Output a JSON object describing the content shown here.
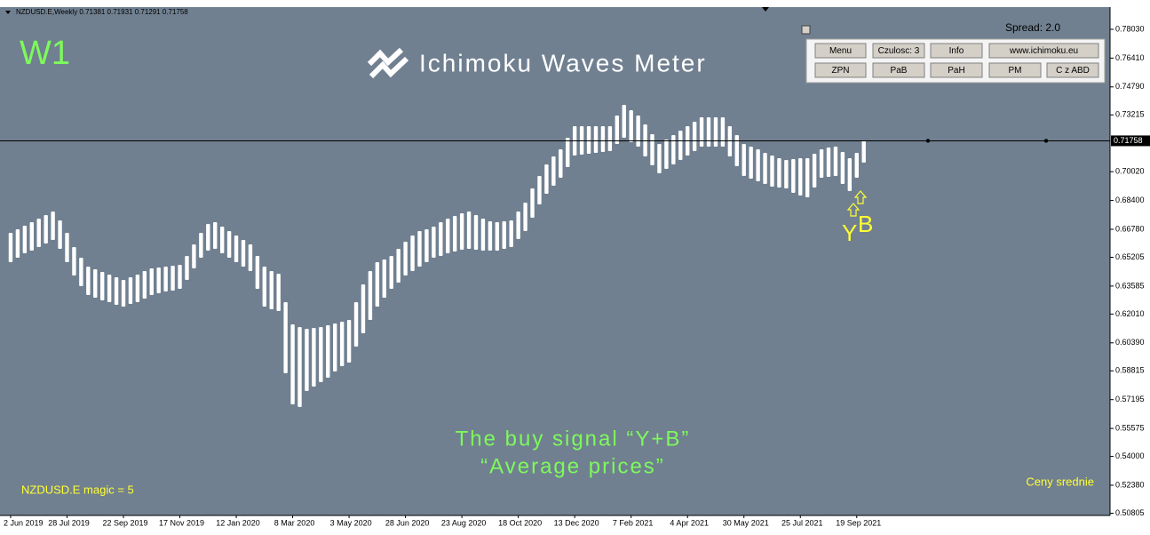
{
  "chart_data": {
    "type": "range-bar",
    "header": "NZDUSD.E,Weekly  0.71381 0.71931 0.71291 0.71758",
    "timeframe": "W1",
    "title": "Ichimoku Waves Meter",
    "spread": "Spread: 2.0",
    "buttons": [
      [
        "Menu",
        "Czulosc: 3",
        "Info",
        "www.ichimoku.eu"
      ],
      [
        "ZPN",
        "PaB",
        "PaH",
        "PM",
        "C z ABD"
      ]
    ],
    "signal_letters": [
      "Y",
      "B"
    ],
    "annotation": [
      "The buy signal “Y+B”",
      "“Average prices”"
    ],
    "footer_left": "NZDUSD.E  magic = 5",
    "footer_right": "Ceny srednie",
    "color": "#ffffff",
    "last_price": 0.71758,
    "ylim": [
      0.7928,
      0.5068
    ],
    "yticks": [
      {
        "value": 0.7803,
        "label": "0.78030"
      },
      {
        "value": 0.7641,
        "label": "0.76410"
      },
      {
        "value": 0.7479,
        "label": "0.74790"
      },
      0.73215,
      {
        "value": 0.7002,
        "label": "0.70020"
      },
      {
        "value": 0.684,
        "label": "0.68400"
      },
      {
        "value": 0.6678,
        "label": "0.66780"
      },
      0.65205,
      0.63585,
      {
        "value": 0.6201,
        "label": "0.62010"
      },
      {
        "value": 0.6039,
        "label": "0.60390"
      },
      0.58815,
      0.57195,
      0.55575,
      {
        "value": 0.54,
        "label": "0.54000"
      },
      {
        "value": 0.5238,
        "label": "0.52380"
      },
      0.50805
    ],
    "categories": [
      "2 Jun 2019",
      null,
      null,
      null,
      null,
      null,
      null,
      null,
      "28 Jul 2019",
      null,
      null,
      null,
      null,
      null,
      null,
      null,
      "22 Sep 2019",
      null,
      null,
      null,
      null,
      null,
      null,
      null,
      "17 Nov 2019",
      null,
      null,
      null,
      null,
      null,
      null,
      null,
      "12 Jan 2020",
      null,
      null,
      null,
      null,
      null,
      null,
      null,
      "8 Mar 2020",
      null,
      null,
      null,
      null,
      null,
      null,
      null,
      "3 May 2020",
      null,
      null,
      null,
      null,
      null,
      null,
      null,
      "28 Jun 2020",
      null,
      null,
      null,
      null,
      null,
      null,
      null,
      "23 Aug 2020",
      null,
      null,
      null,
      null,
      null,
      null,
      null,
      "18 Oct 2020",
      null,
      null,
      null,
      null,
      null,
      null,
      null,
      "13 Dec 2020",
      null,
      null,
      null,
      null,
      null,
      null,
      null,
      "7 Feb 2021",
      null,
      null,
      null,
      null,
      null,
      null,
      null,
      "4 Apr 2021",
      null,
      null,
      null,
      null,
      null,
      null,
      null,
      "30 May 2021",
      null,
      null,
      null,
      null,
      null,
      null,
      null,
      "25 Jul 2021",
      null,
      null,
      null,
      null,
      null,
      null,
      null,
      "19 Sep 2021",
      null
    ],
    "high": [
      0.6658,
      0.6678,
      0.6698,
      0.6718,
      0.6738,
      0.6758,
      0.6778,
      0.6728,
      0.6658,
      0.6578,
      0.6518,
      0.6468,
      0.6453,
      0.6438,
      0.6423,
      0.6408,
      0.6393,
      0.6408,
      0.6423,
      0.6443,
      0.6458,
      0.6463,
      0.6468,
      0.6473,
      0.6478,
      0.6528,
      0.6593,
      0.6658,
      0.6708,
      0.6718,
      0.6693,
      0.6668,
      0.6643,
      0.6618,
      0.6593,
      0.6528,
      0.6468,
      0.6443,
      0.6428,
      0.6268,
      0.6143,
      0.6128,
      0.6118,
      0.6123,
      0.6128,
      0.6138,
      0.6148,
      0.6158,
      0.6168,
      0.6268,
      0.6368,
      0.6443,
      0.6493,
      0.6508,
      0.6528,
      0.6568,
      0.6608,
      0.6643,
      0.6668,
      0.6678,
      0.6693,
      0.6718,
      0.6738,
      0.6753,
      0.6768,
      0.6778,
      0.6758,
      0.6738,
      0.6723,
      0.6718,
      0.6723,
      0.6728,
      0.6778,
      0.6828,
      0.6908,
      0.6978,
      0.7043,
      0.7088,
      0.7128,
      0.7193,
      0.7258,
      0.7258,
      0.7258,
      0.7258,
      0.7258,
      0.7258,
      0.7318,
      0.7378,
      0.7348,
      0.7318,
      0.7268,
      0.7213,
      0.7158,
      0.7183,
      0.7208,
      0.7233,
      0.7258,
      0.7283,
      0.7308,
      0.7308,
      0.7308,
      0.7308,
      0.7258,
      0.7208,
      0.7158,
      0.7143,
      0.7128,
      0.7108,
      0.7093,
      0.7078,
      0.7068,
      0.7073,
      0.7078,
      0.7078,
      0.7103,
      0.7128,
      0.7138,
      0.7143,
      0.7113,
      0.7078,
      0.7108,
      0.7178
    ],
    "low": [
      0.6493,
      0.6518,
      0.6543,
      0.6558,
      0.6578,
      0.6598,
      0.6618,
      0.6568,
      0.6493,
      0.6418,
      0.6358,
      0.6308,
      0.6293,
      0.6278,
      0.6268,
      0.6253,
      0.6243,
      0.6258,
      0.6268,
      0.6288,
      0.6308,
      0.6318,
      0.6328,
      0.6333,
      0.6343,
      0.6393,
      0.6458,
      0.6518,
      0.6558,
      0.6568,
      0.6543,
      0.6518,
      0.6493,
      0.6468,
      0.6443,
      0.6343,
      0.6243,
      0.6228,
      0.6218,
      0.5868,
      0.5693,
      0.5678,
      0.5768,
      0.5793,
      0.5818,
      0.5843,
      0.5878,
      0.5908,
      0.5928,
      0.6018,
      0.6093,
      0.6168,
      0.6243,
      0.6293,
      0.6343,
      0.6378,
      0.6418,
      0.6443,
      0.6468,
      0.6493,
      0.6518,
      0.6528,
      0.6543,
      0.6553,
      0.6563,
      0.6568,
      0.6563,
      0.6558,
      0.6558,
      0.6558,
      0.6568,
      0.6578,
      0.6623,
      0.6668,
      0.6743,
      0.6818,
      0.6878,
      0.6923,
      0.6968,
      0.7028,
      0.7093,
      0.7098,
      0.7103,
      0.7108,
      0.7113,
      0.7118,
      0.7158,
      0.7193,
      0.7168,
      0.7143,
      0.7088,
      0.7038,
      0.6993,
      0.7018,
      0.7043,
      0.7068,
      0.7093,
      0.7118,
      0.7143,
      0.7143,
      0.7143,
      0.7143,
      0.7088,
      0.7033,
      0.6978,
      0.6963,
      0.6948,
      0.6933,
      0.6918,
      0.6913,
      0.6908,
      0.6883,
      0.6868,
      0.6858,
      0.6913,
      0.6968,
      0.6973,
      0.6978,
      0.6933,
      0.6893,
      0.6968,
      0.7053
    ]
  }
}
